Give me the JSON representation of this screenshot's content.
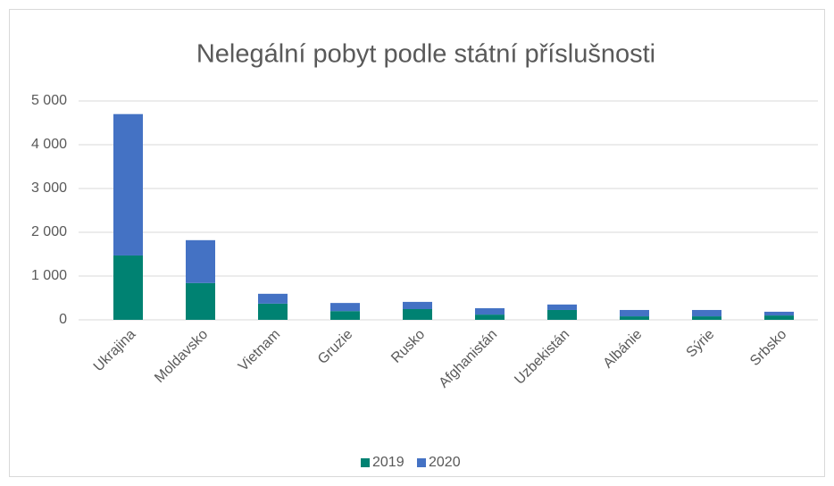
{
  "chart_data": {
    "type": "stacked_bar",
    "title": "Nelegální pobyt podle státní příslušnosti",
    "categories": [
      "Ukrajina",
      "Moldavsko",
      "Vietnam",
      "Gruzie",
      "Rusko",
      "Afghanistán",
      "Uzbekistán",
      "Albánie",
      "Sýrie",
      "Srbsko"
    ],
    "series": [
      {
        "name": "2019",
        "color": "#008272",
        "values": [
          1470,
          840,
          370,
          200,
          245,
          120,
          225,
          80,
          80,
          100
        ]
      },
      {
        "name": "2020",
        "color": "#4472c4",
        "values": [
          3230,
          980,
          225,
          185,
          165,
          145,
          125,
          145,
          145,
          85
        ]
      }
    ],
    "ylim": [
      0,
      5000
    ],
    "yticks": [
      0,
      {
        "value": 1000,
        "label": "1 000"
      },
      {
        "value": 2000,
        "label": "2 000"
      },
      {
        "value": 3000,
        "label": "3 000"
      },
      {
        "value": 4000,
        "label": "4 000"
      },
      {
        "value": 5000,
        "label": "5 000"
      }
    ],
    "grid": true,
    "legend": "bottom"
  }
}
